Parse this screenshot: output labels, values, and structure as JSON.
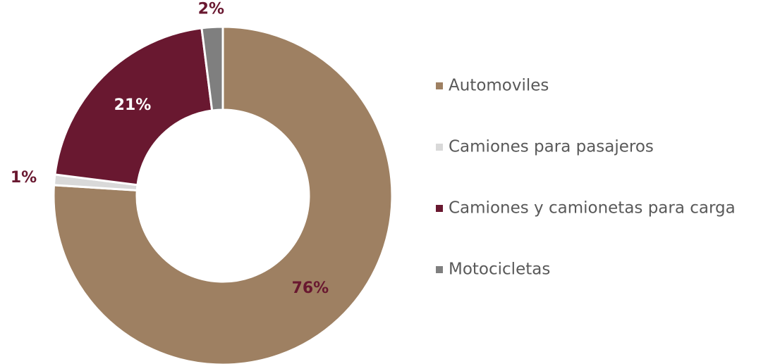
{
  "chart_data": {
    "type": "pie",
    "categories": [
      "Automoviles",
      "Camiones para pasajeros",
      "Camiones y camionetas para carga",
      "Motocicletas"
    ],
    "values": [
      76,
      1,
      21,
      2
    ],
    "value_labels": [
      "76%",
      "1%",
      "21%",
      "2%"
    ],
    "colors": [
      "#9e8062",
      "#d9d9d9",
      "#691830",
      "#7f7f7f"
    ],
    "legend": "right"
  }
}
